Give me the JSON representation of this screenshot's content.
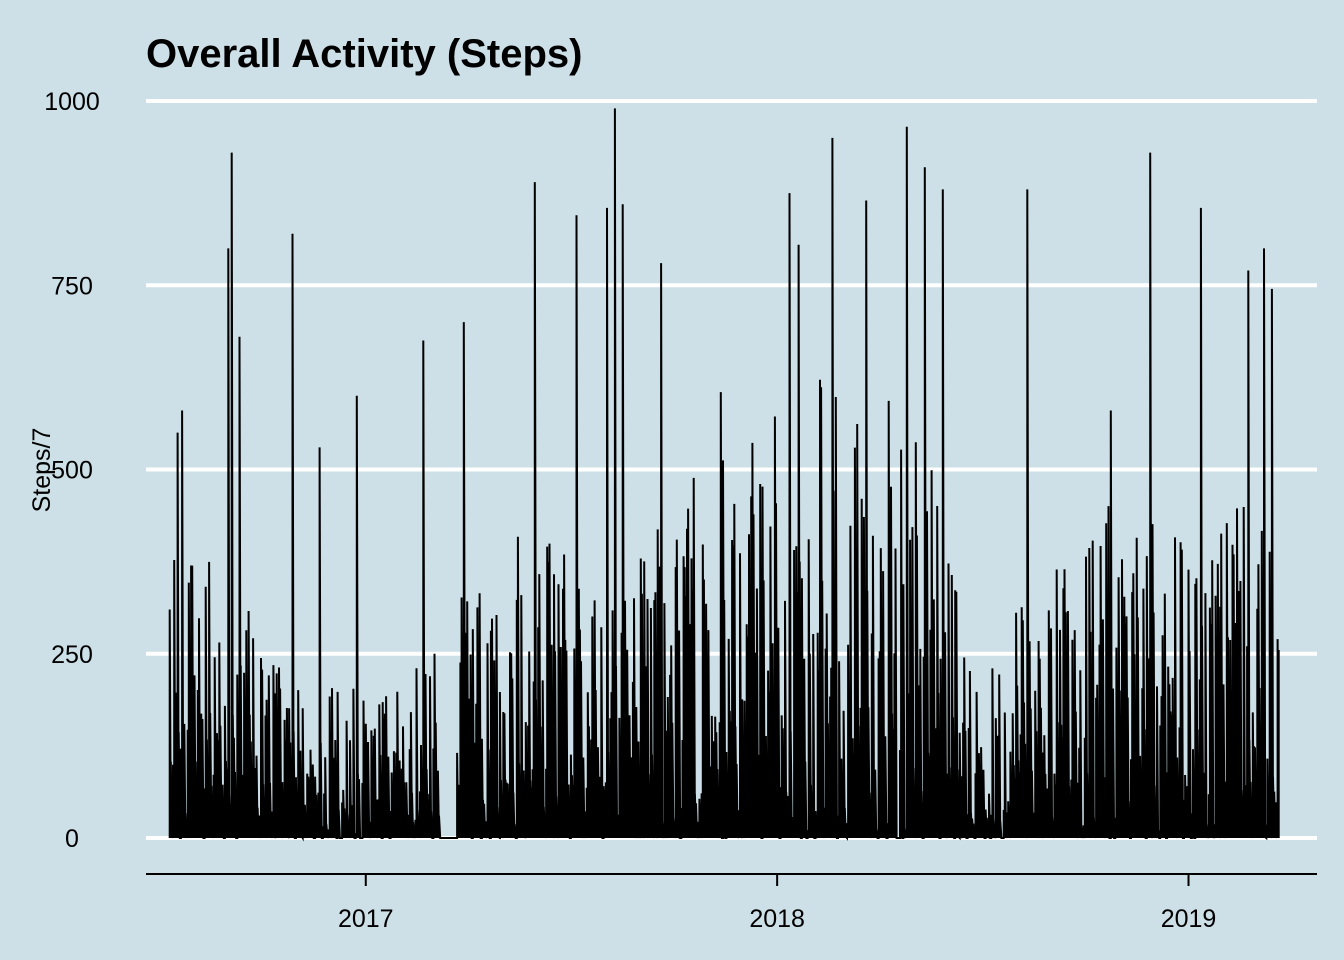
{
  "chart_data": {
    "type": "line",
    "title": "Overall Activity (Steps)",
    "xlabel": "",
    "ylabel": "Steps/7",
    "xlim": [
      "2016-06-20",
      "2019-04-25"
    ],
    "ylim": [
      0,
      1000
    ],
    "y_ticks": [
      0,
      250,
      500,
      750,
      1000
    ],
    "x_ticks": [
      {
        "date": "2017-01-01",
        "label": "2017"
      },
      {
        "date": "2018-01-01",
        "label": "2018"
      },
      {
        "date": "2019-01-01",
        "label": "2019"
      }
    ],
    "grid": "horizontal-major",
    "series": [
      {
        "data_range": [
          "2016-07-11",
          "2019-03-22"
        ],
        "gap": [
          "2017-03-08",
          "2017-03-22"
        ],
        "approximate_peaks": [
          {
            "x": "2016-07-11",
            "y": 310
          },
          {
            "x": "2016-07-18",
            "y": 550
          },
          {
            "x": "2016-07-22",
            "y": 580
          },
          {
            "x": "2016-09-01",
            "y": 800
          },
          {
            "x": "2016-09-04",
            "y": 930
          },
          {
            "x": "2016-09-11",
            "y": 680
          },
          {
            "x": "2016-10-28",
            "y": 820
          },
          {
            "x": "2016-11-21",
            "y": 530
          },
          {
            "x": "2016-12-24",
            "y": 600
          },
          {
            "x": "2017-02-21",
            "y": 675
          },
          {
            "x": "2017-03-29",
            "y": 700
          },
          {
            "x": "2017-05-31",
            "y": 890
          },
          {
            "x": "2017-07-07",
            "y": 845
          },
          {
            "x": "2017-08-03",
            "y": 855
          },
          {
            "x": "2017-08-10",
            "y": 990
          },
          {
            "x": "2017-08-17",
            "y": 860
          },
          {
            "x": "2017-09-20",
            "y": 780
          },
          {
            "x": "2017-11-12",
            "y": 605
          },
          {
            "x": "2018-01-12",
            "y": 875
          },
          {
            "x": "2018-01-20",
            "y": 805
          },
          {
            "x": "2018-02-19",
            "y": 950
          },
          {
            "x": "2018-03-21",
            "y": 865
          },
          {
            "x": "2018-04-26",
            "y": 965
          },
          {
            "x": "2018-05-12",
            "y": 910
          },
          {
            "x": "2018-05-28",
            "y": 880
          },
          {
            "x": "2018-08-11",
            "y": 880
          },
          {
            "x": "2018-10-24",
            "y": 580
          },
          {
            "x": "2018-11-28",
            "y": 930
          },
          {
            "x": "2019-01-12",
            "y": 855
          },
          {
            "x": "2019-02-23",
            "y": 770
          },
          {
            "x": "2019-03-09",
            "y": 800
          },
          {
            "x": "2019-03-16",
            "y": 745
          }
        ]
      }
    ]
  }
}
